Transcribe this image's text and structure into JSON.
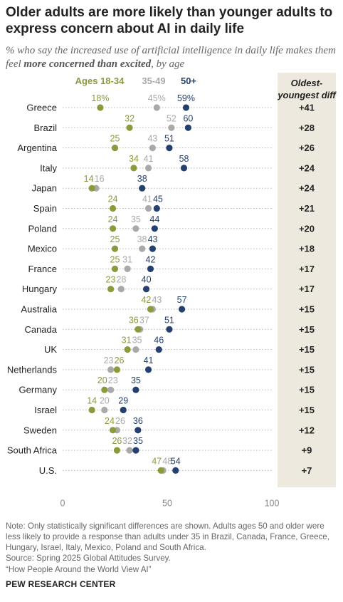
{
  "title": "Older adults are more likely than younger adults to express concern about AI in daily life",
  "subtitle": {
    "part1": "% who say the increased use of artificial intelligence in daily life makes them feel ",
    "bold": "more concerned than excited",
    "part2": ", by age"
  },
  "diff_header": "Oldest-youngest diff",
  "colors": {
    "young": "#8c9a3c",
    "middle": "#a9a9a9",
    "old": "#24406e",
    "diff_bg": "#ede9df"
  },
  "chart_data": {
    "type": "scatter",
    "series": [
      {
        "name": "Ages 18-34",
        "key": "young"
      },
      {
        "name": "35-49",
        "key": "middle"
      },
      {
        "name": "50+",
        "key": "old"
      }
    ],
    "xlim": [
      0,
      100
    ],
    "x_ticks": [
      "0",
      "50",
      "100"
    ],
    "x_tick_values": [
      0,
      50,
      100
    ],
    "rows": [
      {
        "country": "Greece",
        "young": 18,
        "middle": 45,
        "old": 59,
        "young_label": "18%",
        "middle_label": "45%",
        "old_label": "59%",
        "diff": "+41"
      },
      {
        "country": "Brazil",
        "young": 32,
        "middle": 52,
        "old": 60,
        "young_label": "32",
        "middle_label": "52",
        "old_label": "60",
        "diff": "+28"
      },
      {
        "country": "Argentina",
        "young": 25,
        "middle": 43,
        "old": 51,
        "young_label": "25",
        "middle_label": "43",
        "old_label": "51",
        "diff": "+26"
      },
      {
        "country": "Italy",
        "young": 34,
        "middle": 41,
        "old": 58,
        "young_label": "34",
        "middle_label": "41",
        "old_label": "58",
        "diff": "+24"
      },
      {
        "country": "Japan",
        "young": 14,
        "middle": 16,
        "old": 38,
        "young_label": "14",
        "middle_label": "16",
        "old_label": "38",
        "diff": "+24"
      },
      {
        "country": "Spain",
        "young": 24,
        "middle": 41,
        "old": 45,
        "young_label": "24",
        "middle_label": "41",
        "old_label": "45",
        "diff": "+21"
      },
      {
        "country": "Poland",
        "young": 24,
        "middle": 35,
        "old": 44,
        "young_label": "24",
        "middle_label": "35",
        "old_label": "44",
        "diff": "+20"
      },
      {
        "country": "Mexico",
        "young": 25,
        "middle": 38,
        "old": 43,
        "young_label": "25",
        "middle_label": "38",
        "old_label": "43",
        "diff": "+18"
      },
      {
        "country": "France",
        "young": 25,
        "middle": 31,
        "old": 42,
        "young_label": "25",
        "middle_label": "31",
        "old_label": "42",
        "diff": "+17"
      },
      {
        "country": "Hungary",
        "young": 23,
        "middle": 28,
        "old": 40,
        "young_label": "23",
        "middle_label": "28",
        "old_label": "40",
        "diff": "+17"
      },
      {
        "country": "Australia",
        "young": 42,
        "middle": 43,
        "old": 57,
        "young_label": "42",
        "middle_label": "43",
        "old_label": "57",
        "diff": "+15"
      },
      {
        "country": "Canada",
        "young": 36,
        "middle": 37,
        "old": 51,
        "young_label": "36",
        "middle_label": "37",
        "old_label": "51",
        "diff": "+15"
      },
      {
        "country": "UK",
        "young": 31,
        "middle": 35,
        "old": 46,
        "young_label": "31",
        "middle_label": "35",
        "old_label": "46",
        "diff": "+15"
      },
      {
        "country": "Netherlands",
        "young": 26,
        "middle": 23,
        "old": 41,
        "young_label": "26",
        "middle_label": "23",
        "old_label": "41",
        "diff": "+15"
      },
      {
        "country": "Germany",
        "young": 20,
        "middle": 23,
        "old": 35,
        "young_label": "20",
        "middle_label": "23",
        "old_label": "35",
        "diff": "+15"
      },
      {
        "country": "Israel",
        "young": 14,
        "middle": 20,
        "old": 29,
        "young_label": "14",
        "middle_label": "20",
        "old_label": "29",
        "diff": "+15"
      },
      {
        "country": "Sweden",
        "young": 24,
        "middle": 26,
        "old": 36,
        "young_label": "24",
        "middle_label": "26",
        "old_label": "36",
        "diff": "+12"
      },
      {
        "country": "South Africa",
        "young": 26,
        "middle": 32,
        "old": 35,
        "young_label": "26",
        "middle_label": "32",
        "old_label": "35",
        "diff": "+9"
      },
      {
        "country": "U.S.",
        "young": 47,
        "middle": 48,
        "old": 54,
        "young_label": "47",
        "middle_label": "48",
        "old_label": "54",
        "diff": "+7"
      }
    ]
  },
  "notes": "Note: Only statistically significant differences are shown. Adults ages 50 and older were less likely to provide a response than adults under 35 in Brazil, Canada, France, Greece, Hungary, Israel, Italy, Mexico, Poland and South Africa.",
  "source": "Source: Spring 2025 Global Attitudes Survey.",
  "quote": "“How People Around the World View AI”",
  "brand": "PEW RESEARCH CENTER"
}
